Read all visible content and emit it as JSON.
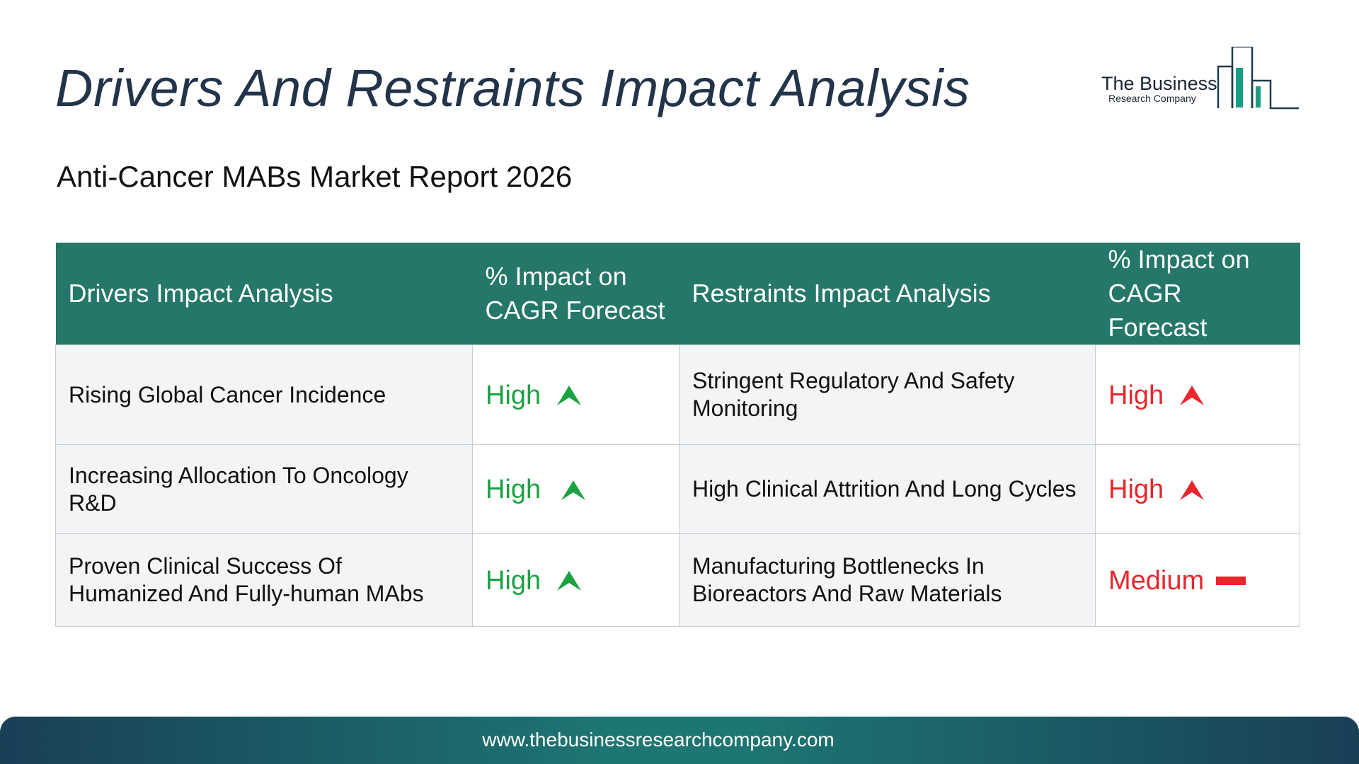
{
  "header": {
    "title": "Drivers And Restraints Impact Analysis",
    "subtitle": "Anti-Cancer MABs Market Report 2026"
  },
  "logo": {
    "name_main": "The Business",
    "name_sub": "Research Company",
    "icon": "bar-chart-building-icon",
    "color": "#1a9e86"
  },
  "table": {
    "headers": {
      "drivers": "Drivers Impact Analysis",
      "drivers_impact": "% Impact on CAGR Forecast",
      "restraints": "Restraints Impact Analysis",
      "restraints_impact": "% Impact on CAGR Forecast"
    },
    "rows": [
      {
        "driver": "Rising Global Cancer Incidence",
        "driver_impact": "High",
        "driver_icon": "arrow-up-icon",
        "restraint": "Stringent Regulatory And Safety Monitoring",
        "restraint_impact": "High",
        "restraint_icon": "arrow-up-icon"
      },
      {
        "driver": "Increasing Allocation To Oncology R&D",
        "driver_impact": "High",
        "driver_icon": "arrow-up-icon",
        "restraint": "High Clinical Attrition And Long Cycles",
        "restraint_impact": "High",
        "restraint_icon": "arrow-up-icon"
      },
      {
        "driver": "Proven Clinical Success Of Humanized And Fully-human MAbs",
        "driver_impact": "High",
        "driver_icon": "arrow-up-icon",
        "restraint": "Manufacturing Bottlenecks In Bioreactors And Raw Materials",
        "restraint_impact": "Medium",
        "restraint_icon": "dash-icon"
      }
    ]
  },
  "colors": {
    "header_bg": "#25776a",
    "driver_level": "#1aa241",
    "restraint_level": "#e8262c"
  },
  "footer": {
    "url": "www.thebusinessresearchcompany.com"
  }
}
